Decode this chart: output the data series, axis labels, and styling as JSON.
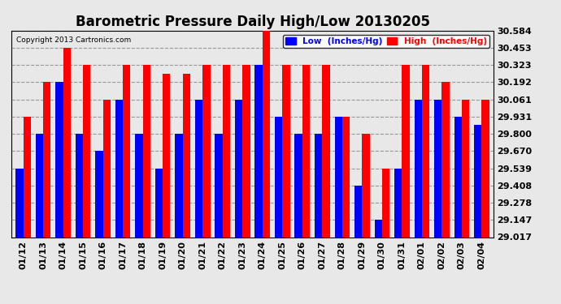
{
  "title": "Barometric Pressure Daily High/Low 20130205",
  "copyright": "Copyright 2013 Cartronics.com",
  "legend_low": "Low  (Inches/Hg)",
  "legend_high": "High  (Inches/Hg)",
  "categories": [
    "01/12",
    "01/13",
    "01/14",
    "01/15",
    "01/16",
    "01/17",
    "01/18",
    "01/19",
    "01/20",
    "01/21",
    "01/22",
    "01/23",
    "01/24",
    "01/25",
    "01/26",
    "01/27",
    "01/28",
    "01/29",
    "01/30",
    "01/31",
    "02/01",
    "02/02",
    "02/03",
    "02/04"
  ],
  "low_values": [
    29.539,
    29.8,
    30.192,
    29.8,
    29.67,
    30.061,
    29.8,
    29.539,
    29.8,
    30.061,
    29.8,
    30.061,
    30.323,
    29.931,
    29.8,
    29.8,
    29.931,
    29.408,
    29.147,
    29.539,
    30.061,
    30.061,
    29.931,
    29.87
  ],
  "high_values": [
    29.931,
    30.192,
    30.453,
    30.323,
    30.061,
    30.323,
    30.323,
    30.253,
    30.253,
    30.323,
    30.323,
    30.323,
    30.584,
    30.323,
    30.323,
    30.323,
    29.931,
    29.8,
    29.539,
    30.323,
    30.323,
    30.192,
    30.061,
    30.061
  ],
  "ylim_min": 29.017,
  "ylim_max": 30.584,
  "yticks": [
    29.017,
    29.147,
    29.278,
    29.408,
    29.539,
    29.67,
    29.8,
    29.931,
    30.061,
    30.192,
    30.323,
    30.453,
    30.584
  ],
  "bar_width": 0.38,
  "low_color": "#0000FF",
  "high_color": "#FF0000",
  "bg_color": "#E8E8E8",
  "grid_color": "#999999",
  "title_fontsize": 12,
  "tick_fontsize": 8,
  "legend_fontsize": 7.5
}
